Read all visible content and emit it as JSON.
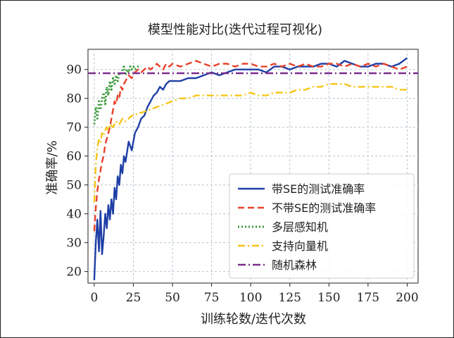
{
  "chart_data": {
    "type": "line",
    "title": "模型性能对比(迭代过程可视化)",
    "xlabel": "训练轮数/迭代次数",
    "ylabel": "准确率/%",
    "xlim": [
      -4,
      207
    ],
    "ylim": [
      16,
      97
    ],
    "xticks": [
      0,
      25,
      50,
      75,
      100,
      125,
      150,
      175,
      200
    ],
    "yticks": [
      20,
      30,
      40,
      50,
      60,
      70,
      80,
      90
    ],
    "grid": true,
    "legend_position": "lower-right",
    "series": [
      {
        "name": "带SE的测试准确率",
        "color": "#1f3fa6",
        "style": "solid",
        "x": [
          0,
          1,
          2,
          3,
          4,
          5,
          6,
          7,
          8,
          9,
          10,
          11,
          12,
          13,
          14,
          15,
          16,
          17,
          18,
          19,
          20,
          22,
          24,
          26,
          28,
          30,
          32,
          34,
          36,
          38,
          40,
          42,
          44,
          46,
          48,
          50,
          55,
          60,
          65,
          70,
          75,
          80,
          85,
          90,
          95,
          100,
          105,
          110,
          115,
          120,
          125,
          130,
          135,
          140,
          145,
          150,
          155,
          160,
          165,
          170,
          175,
          180,
          185,
          190,
          195,
          200
        ],
        "y": [
          17,
          30,
          38,
          27,
          41,
          26,
          32,
          40,
          35,
          43,
          38,
          45,
          40,
          49,
          45,
          53,
          50,
          57,
          54,
          60,
          58,
          65,
          62,
          68,
          70,
          73,
          74,
          77,
          79,
          81,
          82,
          84,
          83,
          85,
          86,
          86,
          86,
          87,
          87,
          88,
          89,
          88,
          89,
          90,
          90,
          90,
          90,
          89,
          91,
          91,
          90,
          91,
          91,
          91,
          92,
          92,
          91,
          93,
          92,
          91,
          91,
          92,
          92,
          91,
          92,
          94
        ]
      },
      {
        "name": "不带SE的测试准确率",
        "color": "#e8402a",
        "style": "dashed",
        "x": [
          0,
          1,
          2,
          3,
          4,
          5,
          6,
          7,
          8,
          9,
          10,
          11,
          12,
          13,
          14,
          15,
          16,
          17,
          18,
          19,
          20,
          22,
          24,
          26,
          28,
          30,
          32,
          34,
          36,
          38,
          40,
          42,
          44,
          46,
          48,
          50,
          55,
          60,
          65,
          70,
          75,
          80,
          85,
          90,
          95,
          100,
          105,
          110,
          115,
          120,
          125,
          130,
          135,
          140,
          145,
          150,
          155,
          160,
          165,
          170,
          175,
          180,
          185,
          190,
          195,
          200
        ],
        "y": [
          34,
          42,
          48,
          52,
          55,
          58,
          60,
          64,
          66,
          68,
          70,
          73,
          76,
          79,
          78,
          81,
          80,
          84,
          83,
          85,
          86,
          88,
          87,
          89,
          90,
          89,
          90,
          91,
          90,
          91,
          92,
          91,
          90,
          92,
          91,
          92,
          91,
          92,
          93,
          92,
          91,
          92,
          92,
          91,
          92,
          92,
          91,
          91,
          92,
          91,
          92,
          91,
          92,
          91,
          91,
          92,
          92,
          91,
          92,
          91,
          92,
          91,
          92,
          91,
          90,
          91
        ]
      },
      {
        "name": "多层感知机",
        "color": "#3a9a3a",
        "style": "dotted",
        "x": [
          0,
          1,
          2,
          3,
          4,
          5,
          6,
          7,
          8,
          9,
          10,
          11,
          12,
          13,
          14,
          15,
          16,
          17,
          18,
          19,
          20,
          21,
          22,
          23,
          24,
          25,
          26,
          28,
          30
        ],
        "y": [
          71,
          77,
          73,
          79,
          76,
          80,
          82,
          78,
          84,
          81,
          86,
          83,
          87,
          85,
          88,
          86,
          89,
          88,
          90,
          91,
          88,
          90,
          89,
          91,
          90,
          91,
          90,
          91,
          91
        ]
      },
      {
        "name": "支持向量机",
        "color": "#f5c518",
        "style": "dashdot",
        "x": [
          0,
          1,
          2,
          3,
          4,
          5,
          6,
          7,
          8,
          9,
          10,
          12,
          14,
          16,
          18,
          20,
          22,
          24,
          26,
          28,
          30,
          35,
          40,
          45,
          50,
          55,
          60,
          65,
          70,
          75,
          80,
          85,
          90,
          95,
          100,
          105,
          110,
          115,
          120,
          125,
          130,
          135,
          140,
          145,
          150,
          155,
          160,
          165,
          170,
          175,
          180,
          185,
          190,
          195,
          200
        ],
        "y": [
          44,
          57,
          63,
          66,
          65,
          68,
          67,
          69,
          70,
          69,
          71,
          70,
          72,
          71,
          73,
          72,
          73,
          74,
          74,
          75,
          75,
          76,
          77,
          78,
          79,
          80,
          80,
          81,
          81,
          81,
          81,
          81,
          81,
          81,
          82,
          81,
          81,
          82,
          82,
          82,
          83,
          83,
          84,
          84,
          85,
          85,
          85,
          84,
          84,
          84,
          84,
          84,
          84,
          83,
          83
        ]
      },
      {
        "name": "随机森林",
        "color": "#7b2d8b",
        "style": "dashdotline",
        "x": [
          -4,
          207
        ],
        "y": [
          88.7,
          88.7
        ]
      }
    ]
  }
}
